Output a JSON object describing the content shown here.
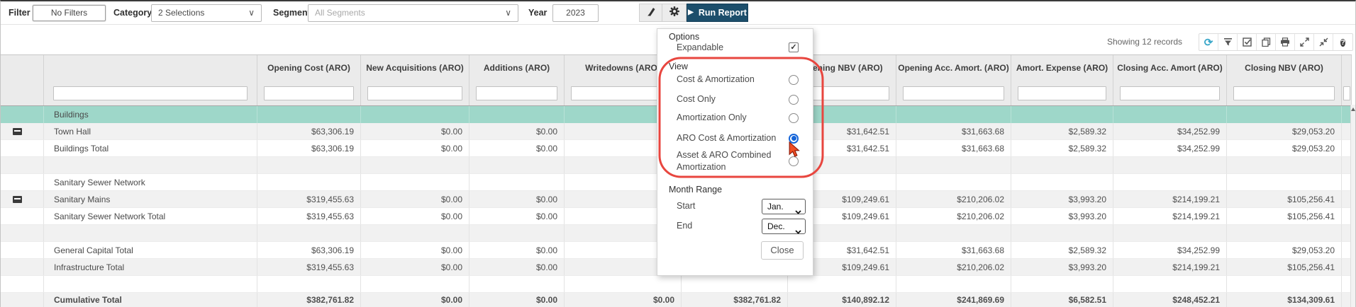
{
  "toolbar": {
    "filter_label": "Filter",
    "no_filters_button": "No Filters",
    "category_label": "Category",
    "category_value": "2 Selections",
    "segment_label": "Segment",
    "segment_value": "All Segments",
    "year_label": "Year",
    "year_value": "2023",
    "run_report_label": "Run Report",
    "icons": [
      "brush-icon",
      "gear-icon"
    ]
  },
  "status_bar": {
    "showing_text": "Showing 12 records",
    "icons": [
      "refresh-icon",
      "filter-icon",
      "checked-box-icon",
      "copy-icon",
      "print-icon",
      "expand-icon",
      "collapse-icon",
      "help-icon"
    ]
  },
  "settings_panel": {
    "options_heading": "Options",
    "expandable_label": "Expandable",
    "expandable_checked": true,
    "view_heading": "View",
    "view_options": [
      {
        "label": "Cost & Amortization",
        "selected": false
      },
      {
        "label": "Cost Only",
        "selected": false
      },
      {
        "label": "Amortization Only",
        "selected": false
      },
      {
        "label": "ARO Cost & Amortization",
        "selected": true
      },
      {
        "label": "Asset & ARO Combined Amortization",
        "selected": false
      }
    ],
    "month_range_heading": "Month Range",
    "start_label": "Start",
    "start_value": "Jan.",
    "end_label": "End",
    "end_value": "Dec.",
    "close_button": "Close"
  },
  "table": {
    "columns": [
      "",
      "",
      "Opening Cost (ARO)",
      "New Acquisitions (ARO)",
      "Additions (ARO)",
      "Writedowns (ARO)",
      "",
      "Opening NBV (ARO)",
      "Opening Acc. Amort. (ARO)",
      "Amort. Expense (ARO)",
      "Closing Acc. Amort (ARO)",
      "Closing NBV (ARO)",
      ""
    ],
    "rows": [
      {
        "type": "group",
        "teal": true,
        "icon": false,
        "name": "Buildings",
        "values": [
          "",
          "",
          "",
          "",
          "",
          "",
          "",
          "",
          "",
          ""
        ]
      },
      {
        "type": "item",
        "icon": true,
        "name": "Town Hall",
        "values": [
          "$63,306.19",
          "$0.00",
          "$0.00",
          "",
          "",
          "$31,642.51",
          "$31,663.68",
          "$2,589.32",
          "$34,252.99",
          "$29,053.20"
        ]
      },
      {
        "type": "total",
        "icon": false,
        "name": "Buildings Total",
        "values": [
          "$63,306.19",
          "$0.00",
          "$0.00",
          "",
          "",
          "$31,642.51",
          "$31,663.68",
          "$2,589.32",
          "$34,252.99",
          "$29,053.20"
        ]
      },
      {
        "type": "empty",
        "icon": false,
        "name": "",
        "values": [
          "",
          "",
          "",
          "",
          "",
          "",
          "",
          "",
          "",
          ""
        ]
      },
      {
        "type": "group",
        "icon": false,
        "name": "Sanitary Sewer Network",
        "values": [
          "",
          "",
          "",
          "",
          "",
          "",
          "",
          "",
          "",
          ""
        ]
      },
      {
        "type": "item",
        "icon": true,
        "name": "Sanitary Mains",
        "values": [
          "$319,455.63",
          "$0.00",
          "$0.00",
          "",
          "",
          "$109,249.61",
          "$210,206.02",
          "$3,993.20",
          "$214,199.21",
          "$105,256.41"
        ]
      },
      {
        "type": "total",
        "icon": false,
        "name": "Sanitary Sewer Network Total",
        "values": [
          "$319,455.63",
          "$0.00",
          "$0.00",
          "",
          "",
          "$109,249.61",
          "$210,206.02",
          "$3,993.20",
          "$214,199.21",
          "$105,256.41"
        ]
      },
      {
        "type": "empty",
        "icon": false,
        "name": "",
        "values": [
          "",
          "",
          "",
          "",
          "",
          "",
          "",
          "",
          "",
          ""
        ]
      },
      {
        "type": "total",
        "icon": false,
        "name": "General Capital Total",
        "values": [
          "$63,306.19",
          "$0.00",
          "$0.00",
          "",
          "",
          "$31,642.51",
          "$31,663.68",
          "$2,589.32",
          "$34,252.99",
          "$29,053.20"
        ]
      },
      {
        "type": "total",
        "icon": false,
        "name": "Infrastructure Total",
        "values": [
          "$319,455.63",
          "$0.00",
          "$0.00",
          "",
          "",
          "$109,249.61",
          "$210,206.02",
          "$3,993.20",
          "$214,199.21",
          "$105,256.41"
        ]
      },
      {
        "type": "empty",
        "icon": false,
        "name": "",
        "values": [
          "",
          "",
          "",
          "",
          "",
          "",
          "",
          "",
          "",
          ""
        ]
      },
      {
        "type": "cumulative",
        "icon": false,
        "name": "Cumulative Total",
        "values": [
          "$382,761.82",
          "$0.00",
          "$0.00",
          "$0.00",
          "$382,761.82",
          "$140,892.12",
          "$241,869.69",
          "$6,582.51",
          "$248,452.21",
          "$134,309.61"
        ]
      }
    ]
  },
  "colors": {
    "accent_navy": "#1c4e6b",
    "teal_row": "#9ed7c9",
    "annotation_red": "#e8463f",
    "refresh_teal": "#3aa7c9",
    "radio_blue": "#1565d8"
  }
}
